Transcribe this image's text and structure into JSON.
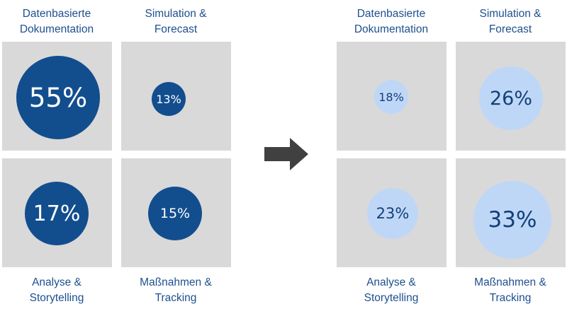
{
  "colors": {
    "panel_bg": "#d9d9d9",
    "dark_bubble": "#124e8e",
    "light_bubble": "#bfd7f7",
    "label_text": "#1e4f8f",
    "arrow": "#404040"
  },
  "left_grid": {
    "top_labels": [
      {
        "line1": "Datenbasierte",
        "line2": "Dokumentation"
      },
      {
        "line1": "Simulation &",
        "line2": "Forecast"
      }
    ],
    "bottom_labels": [
      {
        "line1": "Analyse &",
        "line2": "Storytelling"
      },
      {
        "line1": "Maßnahmen &",
        "line2": "Tracking"
      }
    ],
    "cells": [
      {
        "category": "Datenbasierte Dokumentation",
        "value": 55,
        "text": "55%"
      },
      {
        "category": "Simulation & Forecast",
        "value": 13,
        "text": "13%"
      },
      {
        "category": "Analyse & Storytelling",
        "value": 17,
        "text": "17%"
      },
      {
        "category": "Maßnahmen & Tracking",
        "value": 15,
        "text": "15%"
      }
    ]
  },
  "arrow_icon": "right-arrow-icon",
  "right_grid": {
    "top_labels": [
      {
        "line1": "Datenbasierte",
        "line2": "Dokumentation"
      },
      {
        "line1": "Simulation &",
        "line2": "Forecast"
      }
    ],
    "bottom_labels": [
      {
        "line1": "Analyse &",
        "line2": "Storytelling"
      },
      {
        "line1": "Maßnahmen &",
        "line2": "Tracking"
      }
    ],
    "cells": [
      {
        "category": "Datenbasierte Dokumentation",
        "value": 18,
        "text": "18%"
      },
      {
        "category": "Simulation & Forecast",
        "value": 26,
        "text": "26%"
      },
      {
        "category": "Analyse & Storytelling",
        "value": 23,
        "text": "23%"
      },
      {
        "category": "Maßnahmen & Tracking",
        "value": 33,
        "text": "33%"
      }
    ]
  }
}
